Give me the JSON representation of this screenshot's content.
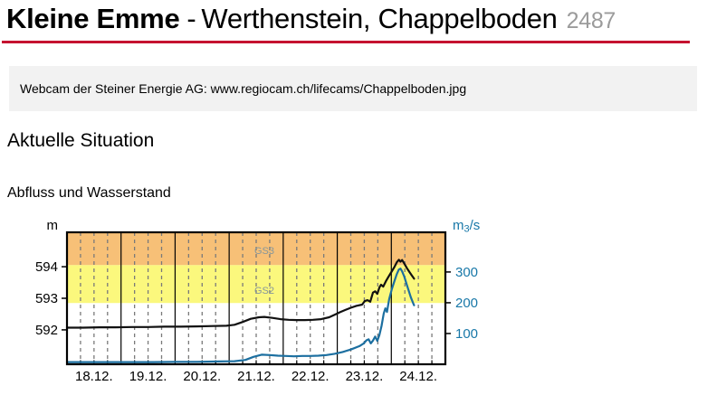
{
  "header": {
    "river": "Kleine Emme",
    "separator": "-",
    "station_name": "Werthenstein, Chappelboden",
    "station_id": "2487",
    "accent_color": "#c51230"
  },
  "webcam_notice": "Webcam der Steiner Energie AG: www.regiocam.ch/lifecams/Chappelboden.jpg",
  "section_title": "Aktuelle Situation",
  "chart_data": {
    "type": "line",
    "title": "Abfluss und Wasserstand",
    "left_axis": {
      "unit": "m",
      "ticks": [
        592,
        593,
        594
      ],
      "range": [
        590.91,
        595.09
      ],
      "color": "#000000"
    },
    "right_axis": {
      "unit": "m3/s",
      "unit_display": {
        "base": "m",
        "sub": "3",
        "rest": "/s"
      },
      "ticks": [
        100,
        200,
        300
      ],
      "range": [
        0,
        429
      ],
      "color": "#1878a8"
    },
    "x_axis": {
      "labels": [
        "18.12.",
        "19.12.",
        "20.12.",
        "21.12.",
        "22.12.",
        "23.12.",
        "24.12."
      ],
      "days": 7,
      "minor_ticks_per_day": 4
    },
    "grid": {
      "minor_color": "#7a7a7a",
      "day_line_color": "#000000",
      "minor_dash": "4 4"
    },
    "zone_label_day": 3.65,
    "danger_zones": [
      {
        "label": "GS3",
        "from_level": 594.05,
        "to_level": 595.09,
        "color": "#f7c077",
        "label_color": "#86979c",
        "label_level": 594.48
      },
      {
        "label": "GS2",
        "from_level": 592.85,
        "to_level": 594.05,
        "color": "#fbf87d",
        "label_color": "#86979c",
        "label_level": 593.23
      }
    ],
    "series": [
      {
        "name": "Wasserstand",
        "axis": "left",
        "unit": "m",
        "color": "#111111",
        "points": [
          [
            0,
            592.07
          ],
          [
            0.3,
            592.07
          ],
          [
            0.6,
            592.08
          ],
          [
            0.9,
            592.08
          ],
          [
            1.2,
            592.09
          ],
          [
            1.5,
            592.09
          ],
          [
            1.8,
            592.1
          ],
          [
            2.1,
            592.1
          ],
          [
            2.4,
            592.11
          ],
          [
            2.7,
            592.12
          ],
          [
            2.95,
            592.13
          ],
          [
            3.1,
            592.16
          ],
          [
            3.25,
            592.25
          ],
          [
            3.4,
            592.35
          ],
          [
            3.55,
            592.4
          ],
          [
            3.65,
            592.41
          ],
          [
            3.8,
            592.38
          ],
          [
            3.95,
            592.34
          ],
          [
            4.1,
            592.32
          ],
          [
            4.25,
            592.31
          ],
          [
            4.4,
            592.31
          ],
          [
            4.55,
            592.32
          ],
          [
            4.7,
            592.34
          ],
          [
            4.85,
            592.4
          ],
          [
            4.95,
            592.48
          ],
          [
            5.05,
            592.56
          ],
          [
            5.15,
            592.63
          ],
          [
            5.25,
            592.7
          ],
          [
            5.35,
            592.76
          ],
          [
            5.46,
            592.8
          ],
          [
            5.51,
            592.91
          ],
          [
            5.56,
            592.94
          ],
          [
            5.61,
            592.89
          ],
          [
            5.66,
            593.18
          ],
          [
            5.7,
            593.22
          ],
          [
            5.74,
            593.14
          ],
          [
            5.78,
            593.34
          ],
          [
            5.81,
            593.43
          ],
          [
            5.85,
            593.37
          ],
          [
            5.9,
            593.54
          ],
          [
            5.95,
            593.69
          ],
          [
            6.0,
            593.83
          ],
          [
            6.05,
            593.97
          ],
          [
            6.1,
            594.14
          ],
          [
            6.14,
            594.22
          ],
          [
            6.17,
            594.16
          ],
          [
            6.2,
            594.21
          ],
          [
            6.24,
            594.1
          ],
          [
            6.29,
            593.95
          ],
          [
            6.34,
            593.82
          ],
          [
            6.38,
            593.72
          ],
          [
            6.42,
            593.62
          ]
        ]
      },
      {
        "name": "Abfluss",
        "axis": "right",
        "unit": "m3/s",
        "color": "#1c6fa0",
        "points": [
          [
            0,
            7
          ],
          [
            0.4,
            7
          ],
          [
            0.8,
            7
          ],
          [
            1.2,
            7
          ],
          [
            1.6,
            7
          ],
          [
            2.0,
            8
          ],
          [
            2.4,
            8
          ],
          [
            2.8,
            9
          ],
          [
            3.1,
            10
          ],
          [
            3.3,
            14
          ],
          [
            3.45,
            24
          ],
          [
            3.6,
            31
          ],
          [
            3.75,
            30
          ],
          [
            3.9,
            28
          ],
          [
            4.05,
            27
          ],
          [
            4.2,
            26
          ],
          [
            4.35,
            27
          ],
          [
            4.5,
            27
          ],
          [
            4.65,
            28
          ],
          [
            4.8,
            30
          ],
          [
            4.95,
            34
          ],
          [
            5.1,
            40
          ],
          [
            5.25,
            48
          ],
          [
            5.41,
            59
          ],
          [
            5.49,
            68
          ],
          [
            5.54,
            78
          ],
          [
            5.58,
            81
          ],
          [
            5.62,
            68
          ],
          [
            5.66,
            77
          ],
          [
            5.7,
            90
          ],
          [
            5.74,
            76
          ],
          [
            5.78,
            95
          ],
          [
            5.82,
            125
          ],
          [
            5.86,
            165
          ],
          [
            5.89,
            182
          ],
          [
            5.92,
            170
          ],
          [
            5.96,
            212
          ],
          [
            6.01,
            245
          ],
          [
            6.06,
            272
          ],
          [
            6.1,
            293
          ],
          [
            6.14,
            308
          ],
          [
            6.17,
            311
          ],
          [
            6.2,
            302
          ],
          [
            6.24,
            285
          ],
          [
            6.28,
            262
          ],
          [
            6.32,
            240
          ],
          [
            6.36,
            218
          ],
          [
            6.4,
            200
          ],
          [
            6.42,
            192
          ]
        ]
      }
    ]
  }
}
